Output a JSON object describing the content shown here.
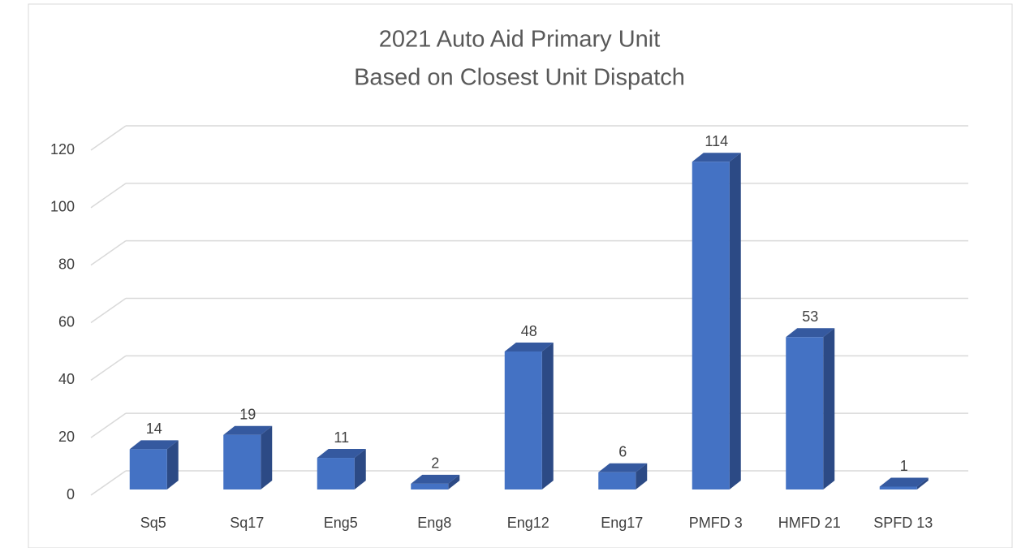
{
  "chart_data": {
    "type": "bar3d",
    "title": [
      "2021 Auto Aid Primary Unit",
      "Based on Closest Unit Dispatch"
    ],
    "categories": [
      "Sq5",
      "Sq17",
      "Eng5",
      "Eng8",
      "Eng12",
      "Eng17",
      "PMFD 3",
      "HMFD 21",
      "SPFD 13"
    ],
    "values": [
      14,
      19,
      11,
      2,
      48,
      6,
      114,
      53,
      1
    ],
    "color": "#4472c4",
    "ylim": [
      0,
      120
    ],
    "yticks": [
      0,
      20,
      40,
      60,
      80,
      100,
      120
    ],
    "grid": true
  }
}
